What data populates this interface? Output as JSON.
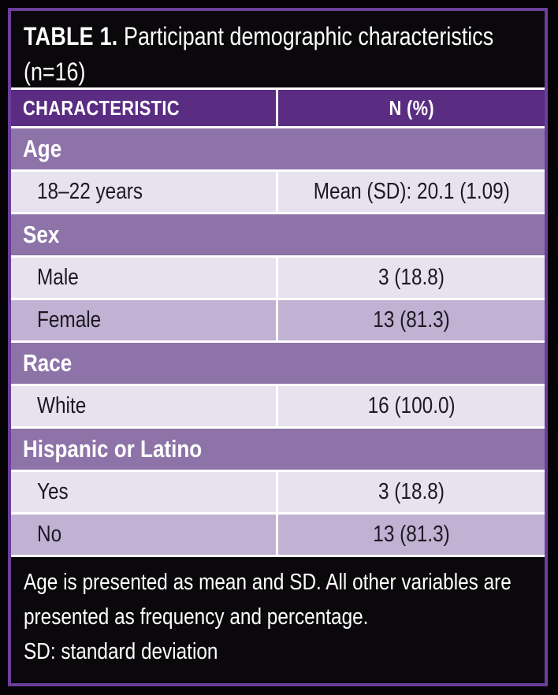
{
  "title": {
    "label": "TABLE 1.",
    "text": "Participant demographic characteristics",
    "line2": "(n=16)"
  },
  "header": {
    "col1": "CHARACTERISTIC",
    "col2": "N (%)"
  },
  "rows": [
    {
      "type": "section",
      "label": "Age"
    },
    {
      "type": "data",
      "label": "18–22 years",
      "value": "Mean (SD): 20.1 (1.09)",
      "shade": "light"
    },
    {
      "type": "section",
      "label": "Sex"
    },
    {
      "type": "data",
      "label": "Male",
      "value": "3 (18.8)",
      "shade": "light"
    },
    {
      "type": "data",
      "label": "Female",
      "value": "13 (81.3)",
      "shade": "dark"
    },
    {
      "type": "section",
      "label": "Race"
    },
    {
      "type": "data",
      "label": "White",
      "value": "16 (100.0)",
      "shade": "light"
    },
    {
      "type": "section",
      "label": "Hispanic or Latino"
    },
    {
      "type": "data",
      "label": "Yes",
      "value": "3 (18.8)",
      "shade": "light"
    },
    {
      "type": "data",
      "label": "No",
      "value": "13 (81.3)",
      "shade": "dark"
    }
  ],
  "footnote": {
    "lines": [
      "Age is presented as mean and SD. All other variables are",
      "presented as frequency and percentage.",
      "SD: standard deviation"
    ]
  },
  "colors": {
    "border_purple": "#6b3f99",
    "header_purple": "#5b2d82",
    "section_purple": "#8d73a8",
    "row_light": "#e7e2ee",
    "row_dark": "#c1b1d3",
    "band_black": "#0a080b",
    "divider_white": "#ffffff"
  }
}
